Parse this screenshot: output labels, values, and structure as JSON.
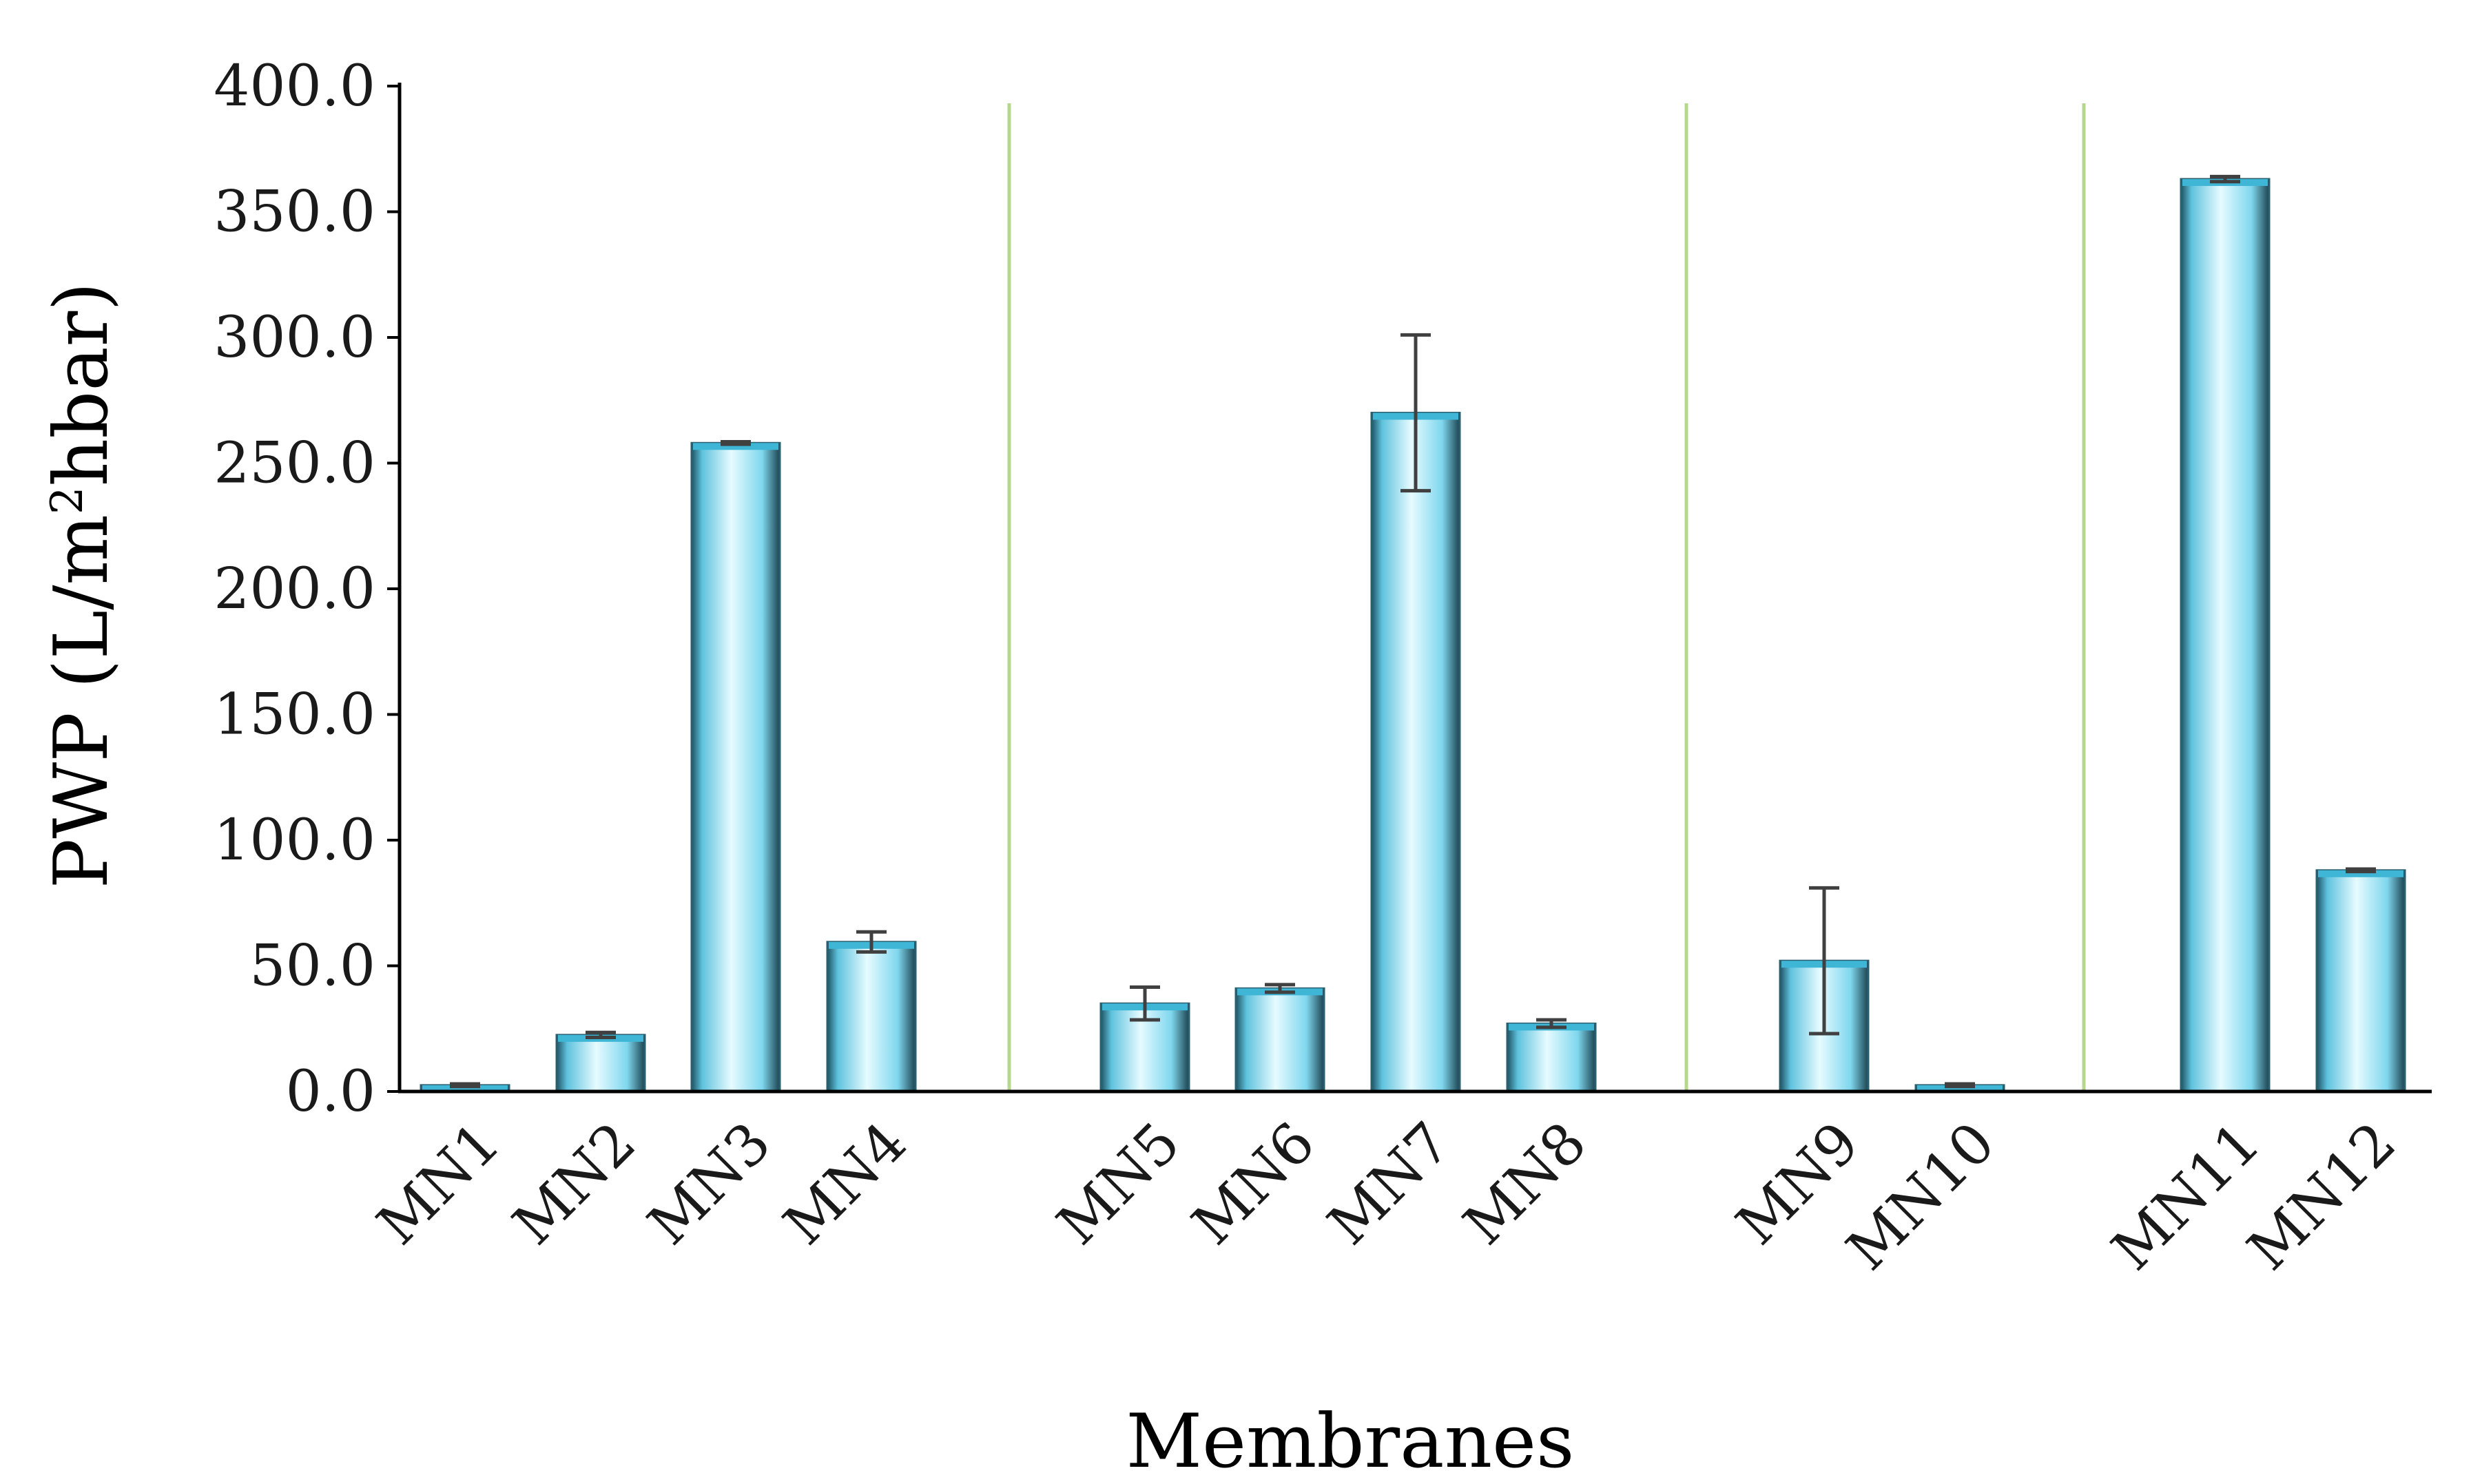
{
  "chart_data": {
    "type": "bar",
    "xlabel": "Membranes",
    "ylabel": {
      "prefix": "PWP (L/m",
      "sup": "2",
      "suffix": "hbar)"
    },
    "ylim": [
      0,
      400
    ],
    "yticks": [
      "0.0",
      "50.0",
      "100.0",
      "150.0",
      "200.0",
      "250.0",
      "300.0",
      "350.0",
      "400.0"
    ],
    "grid": false,
    "legend": "none",
    "categories": [
      "MN1",
      "MN2",
      "MN3",
      "MN4",
      "MN5",
      "MN6",
      "MN7",
      "MN8",
      "MN9",
      "MN10",
      "MN11",
      "MN12"
    ],
    "groups": [
      [
        "MN1",
        "MN2",
        "MN3",
        "MN4"
      ],
      [
        "MN5",
        "MN6",
        "MN7",
        "MN8"
      ],
      [
        "MN9",
        "MN10"
      ],
      [
        "MN11",
        "MN12"
      ]
    ],
    "values": [
      2.5,
      22.5,
      258,
      59.5,
      35,
      41,
      270,
      27,
      52,
      2.5,
      363,
      88
    ],
    "errors": [
      0.5,
      1.0,
      0.5,
      4.0,
      6.5,
      1.5,
      31,
      1.5,
      29,
      0.5,
      1.0,
      0.5
    ],
    "colors": {
      "bar_light": "#e6fbff",
      "bar_mid": "#7fd7ee",
      "bar_dark": "#1f5363",
      "separator": "#b6d88a",
      "error_bar": "#404040",
      "axis": "#000000"
    }
  }
}
